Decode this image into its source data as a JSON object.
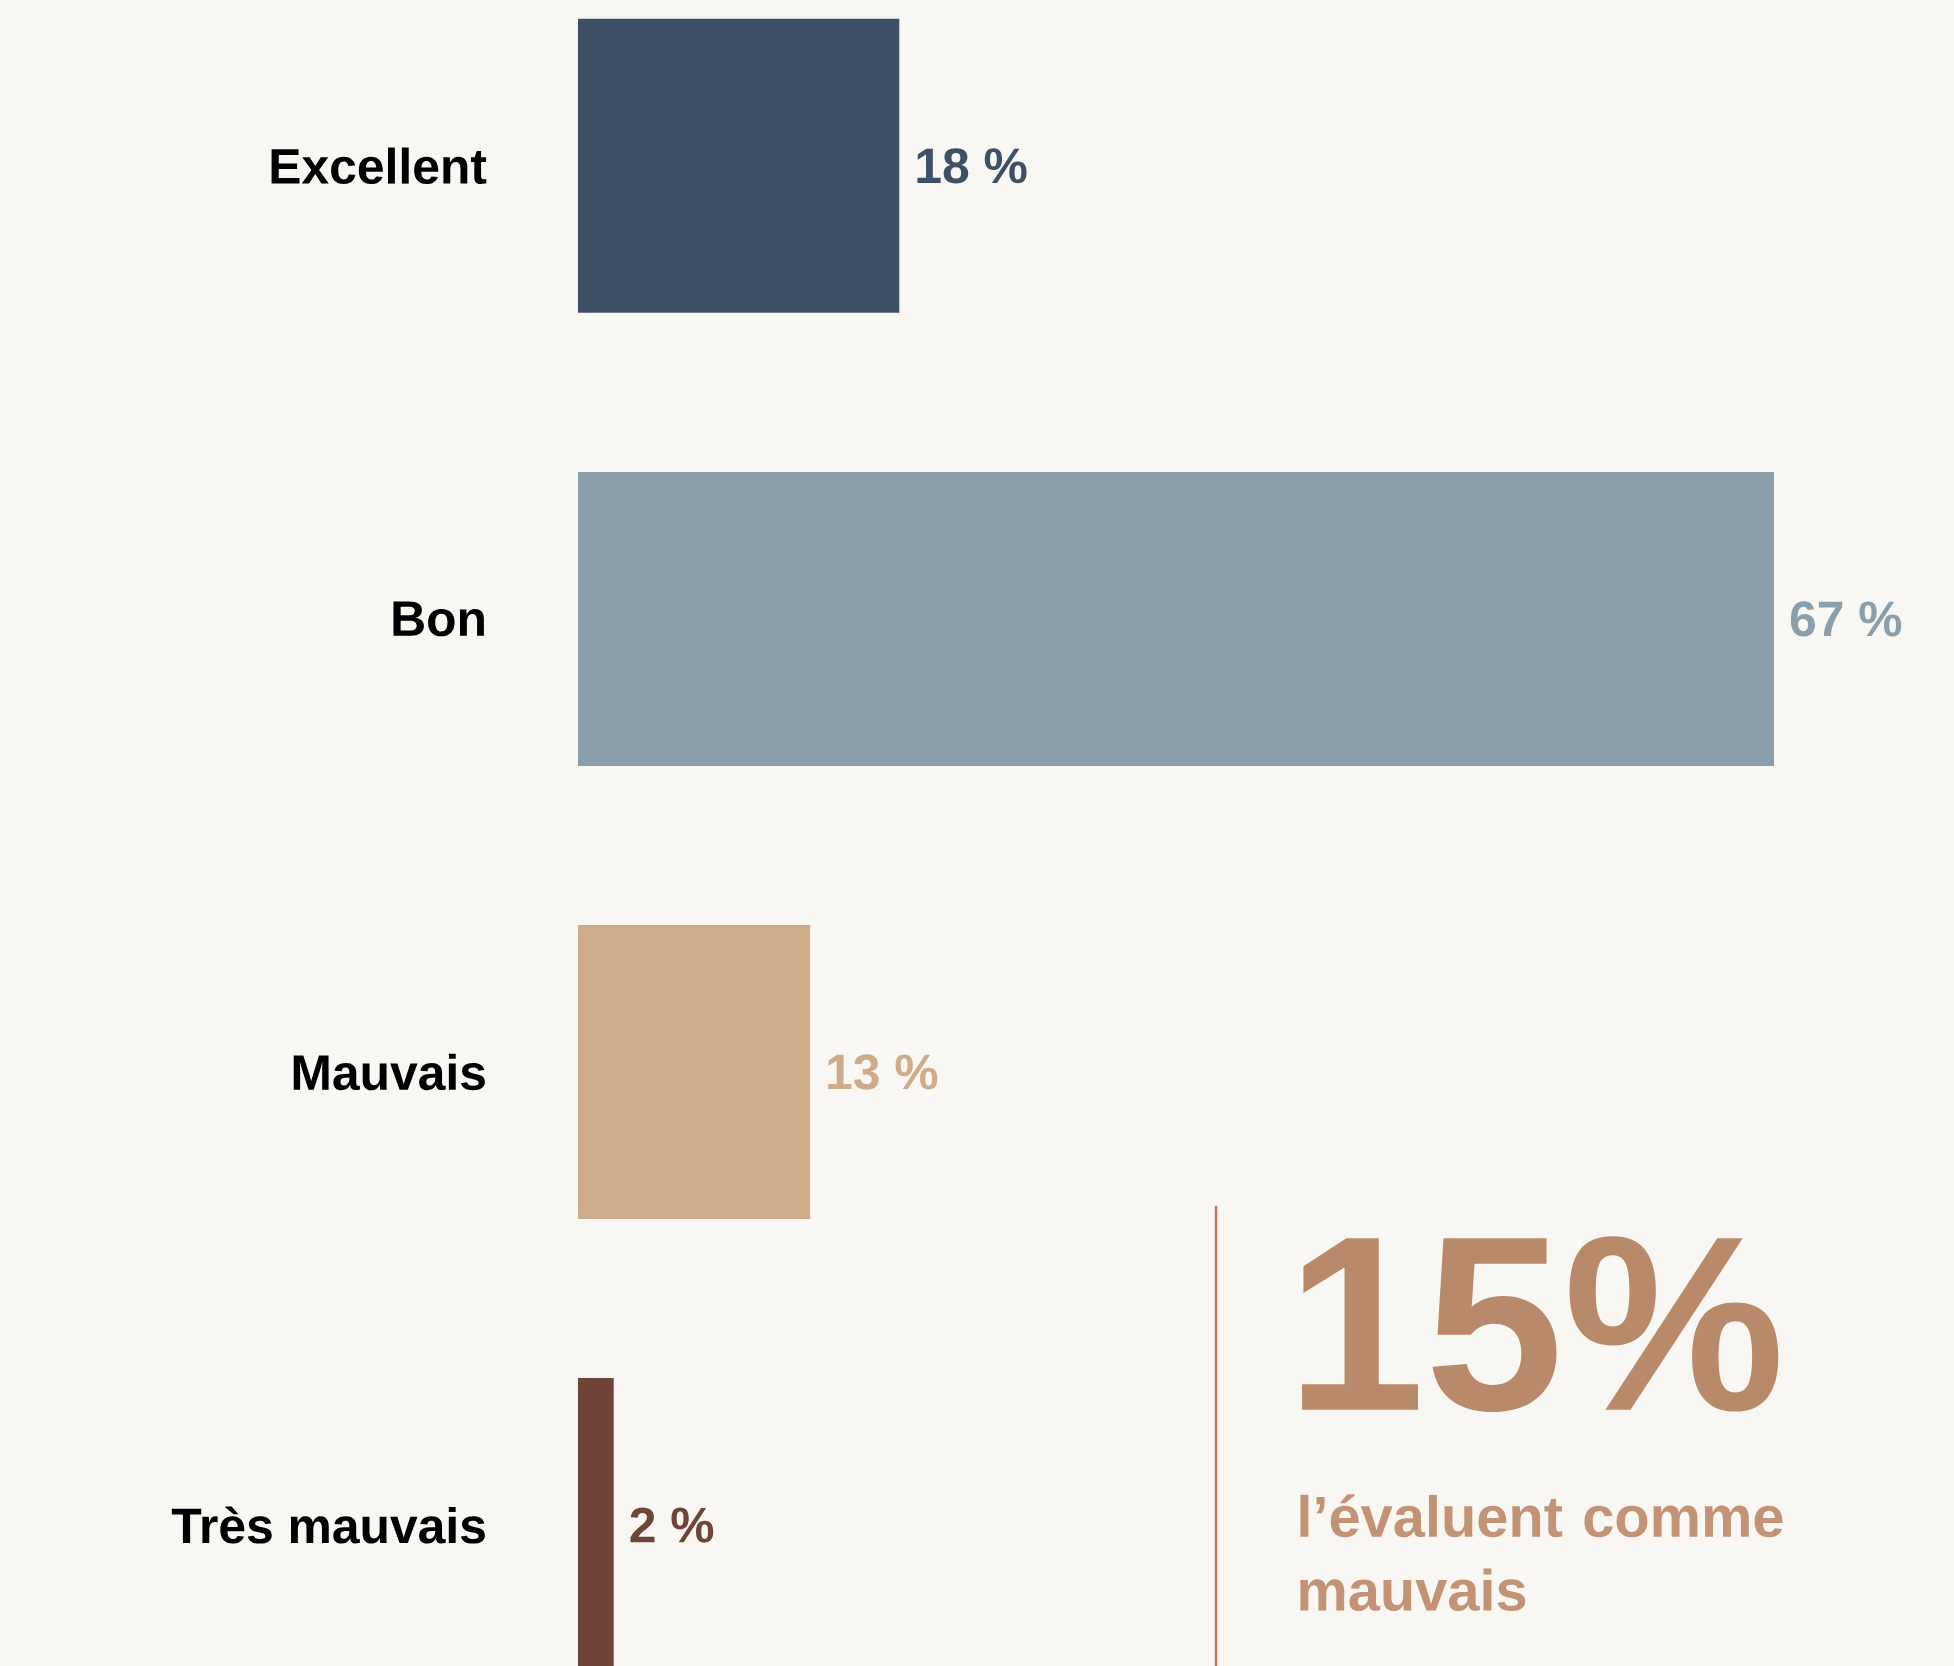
{
  "chart_data": {
    "type": "bar",
    "orientation": "horizontal",
    "categories": [
      "Excellent",
      "Bon",
      "Mauvais",
      "Très mauvais"
    ],
    "values": [
      18,
      67,
      13,
      2
    ],
    "colors": [
      "#3d5066",
      "#8b9eac",
      "#cfab89",
      "#6e4538"
    ],
    "value_labels": [
      "18 %",
      "67 %",
      "13 %",
      "2 %"
    ],
    "xlim": [
      0,
      67
    ],
    "annotations": [
      "15%",
      "l’évaluent comme mauvais"
    ]
  }
}
